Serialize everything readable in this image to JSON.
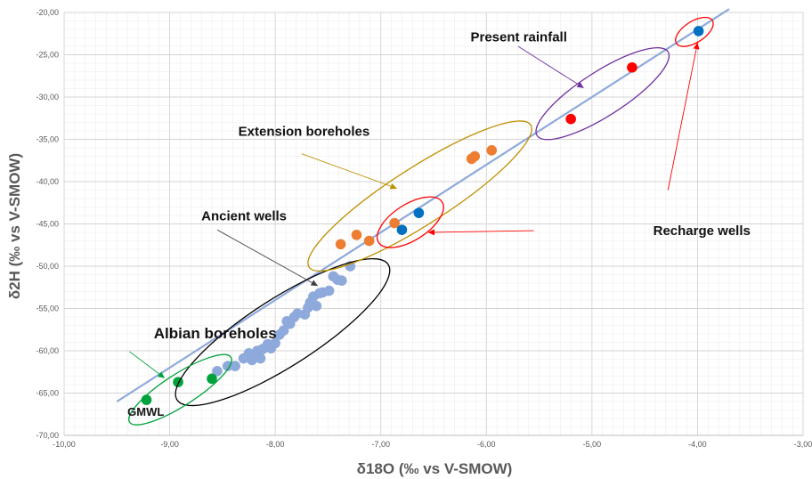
{
  "chart_data": {
    "type": "scatter",
    "xlabel": "δ18O (‰ vs V-SMOW)",
    "ylabel": "δ2H (‰ vs V-SMOW)",
    "xlim": [
      -10,
      -3
    ],
    "ylim": [
      -70,
      -20
    ],
    "x_major_step": 1,
    "y_major_step": 5,
    "x_minor_step": 0.1,
    "y_minor_step": 1,
    "x_ticks": [
      "-10,00",
      "-9,00",
      "-8,00",
      "-7,00",
      "-6,00",
      "-5,00",
      "-4,00",
      "-3,00"
    ],
    "y_ticks": [
      "-70,00",
      "-65,00",
      "-60,00",
      "-55,00",
      "-50,00",
      "-45,00",
      "-40,00",
      "-35,00",
      "-30,00",
      "-25,00",
      "-20,00"
    ],
    "grid": true,
    "line": {
      "name": "GMWL",
      "color": "#8EA9DB",
      "x": [
        -9.5,
        -3.7
      ],
      "y": [
        -66.0,
        -19.6
      ]
    },
    "series": [
      {
        "name": "Ancient wells",
        "color": "#8EA9DB",
        "points": [
          [
            -8.55,
            -62.4
          ],
          [
            -8.45,
            -61.8
          ],
          [
            -8.38,
            -61.8
          ],
          [
            -8.3,
            -60.9
          ],
          [
            -8.25,
            -60.3
          ],
          [
            -8.22,
            -61.1
          ],
          [
            -8.2,
            -60.4
          ],
          [
            -8.17,
            -60.0
          ],
          [
            -8.14,
            -60.9
          ],
          [
            -8.12,
            -59.8
          ],
          [
            -8.09,
            -59.6
          ],
          [
            -8.07,
            -59.2
          ],
          [
            -8.04,
            -59.7
          ],
          [
            -8.0,
            -59.1
          ],
          [
            -7.96,
            -58.1
          ],
          [
            -7.92,
            -57.6
          ],
          [
            -7.89,
            -56.5
          ],
          [
            -7.86,
            -56.8
          ],
          [
            -7.82,
            -56.0
          ],
          [
            -7.79,
            -55.6
          ],
          [
            -7.72,
            -55.7
          ],
          [
            -7.69,
            -54.9
          ],
          [
            -7.67,
            -54.3
          ],
          [
            -7.64,
            -53.6
          ],
          [
            -7.61,
            -54.7
          ],
          [
            -7.58,
            -53.2
          ],
          [
            -7.55,
            -53.1
          ],
          [
            -7.49,
            -52.9
          ],
          [
            -7.45,
            -51.2
          ],
          [
            -7.41,
            -51.6
          ],
          [
            -7.37,
            -51.7
          ],
          [
            -7.29,
            -50.0
          ]
        ]
      },
      {
        "name": "Extension boreholes",
        "color": "#ED7D31",
        "points": [
          [
            -7.38,
            -47.4
          ],
          [
            -7.23,
            -46.3
          ],
          [
            -7.11,
            -47.0
          ],
          [
            -6.87,
            -44.9
          ],
          [
            -6.14,
            -37.3
          ],
          [
            -6.11,
            -37.0
          ],
          [
            -5.95,
            -36.3
          ]
        ]
      },
      {
        "name": "Recharge wells",
        "color": "#0070C0",
        "points": [
          [
            -6.8,
            -45.7
          ],
          [
            -6.64,
            -43.7
          ],
          [
            -3.99,
            -22.2
          ]
        ]
      },
      {
        "name": "Present rainfall",
        "color": "#FF0000",
        "points": [
          [
            -5.2,
            -32.6
          ],
          [
            -4.62,
            -26.5
          ]
        ]
      },
      {
        "name": "Albian boreholes",
        "color": "#00A23B",
        "points": [
          [
            -9.22,
            -65.8
          ],
          [
            -8.92,
            -63.7
          ],
          [
            -8.6,
            -63.3
          ]
        ]
      }
    ],
    "ellipses": [
      {
        "label": "Ancient wells",
        "color": "#000000",
        "cx": -7.93,
        "cy": -57.8,
        "half_len": 1.0,
        "half_wid": 0.32
      },
      {
        "label": "Extension boreholes",
        "color": "#BF9000",
        "cx": -6.63,
        "cy": -41.7,
        "half_len": 1.05,
        "half_wid": 0.27
      },
      {
        "label": "Recharge wells",
        "color": "#FF0000",
        "cx": -6.72,
        "cy": -44.8,
        "half_len": 0.3,
        "half_wid": 0.17
      },
      {
        "label": "Present rainfall",
        "color": "#7030A0",
        "cx": -4.9,
        "cy": -29.6,
        "half_len": 0.62,
        "half_wid": 0.21
      },
      {
        "label": "Recharge wells",
        "color": "#FF0000",
        "cx": -4.03,
        "cy": -22.3,
        "half_len": 0.17,
        "half_wid": 0.1
      },
      {
        "label": "Albian boreholes",
        "color": "#00A23B",
        "cx": -8.9,
        "cy": -64.6,
        "half_len": 0.48,
        "half_wid": 0.15
      }
    ],
    "annotations": [
      {
        "text": "Present rainfall",
        "font_size": 15,
        "color": "#111111",
        "x": -6.15,
        "y": -23.4
      },
      {
        "text": "Extension boreholes",
        "font_size": 15,
        "color": "#111111",
        "x": -8.35,
        "y": -34.6
      },
      {
        "text": "Ancient wells",
        "font_size": 15,
        "color": "#111111",
        "x": -8.7,
        "y": -44.6
      },
      {
        "text": "Recharge wells",
        "font_size": 15,
        "color": "#111111",
        "x": -4.42,
        "y": -46.3
      },
      {
        "text": "Albian boreholes",
        "font_size": 17,
        "color": "#111111",
        "x": -9.15,
        "y": -58.5
      },
      {
        "text": "GMWL",
        "font_size": 13,
        "color": "#111111",
        "x": -9.4,
        "y": -67.7
      }
    ],
    "arrows": [
      {
        "label": "Present rainfall",
        "color": "#7030A0",
        "from": [
          -5.7,
          -24.0
        ],
        "to": [
          -5.08,
          -28.9
        ]
      },
      {
        "label": "Extension boreholes",
        "color": "#BF9000",
        "from": [
          -7.75,
          -36.7
        ],
        "to": [
          -6.85,
          -40.8
        ]
      },
      {
        "label": "Ancient wells",
        "color": "#404040",
        "from": [
          -8.55,
          -45.7
        ],
        "to": [
          -7.6,
          -52.3
        ]
      },
      {
        "label": "Recharge wells",
        "color": "#FF0000",
        "from": [
          -5.55,
          -45.8
        ],
        "to": [
          -6.55,
          -46.0
        ]
      },
      {
        "label": "Recharge wells",
        "color": "#FF0000",
        "from": [
          -4.28,
          -41.0
        ],
        "to": [
          -4.0,
          -23.6
        ]
      },
      {
        "label": "Albian boreholes",
        "color": "#00A23B",
        "from": [
          -9.38,
          -60.1
        ],
        "to": [
          -9.05,
          -63.2
        ]
      }
    ]
  }
}
